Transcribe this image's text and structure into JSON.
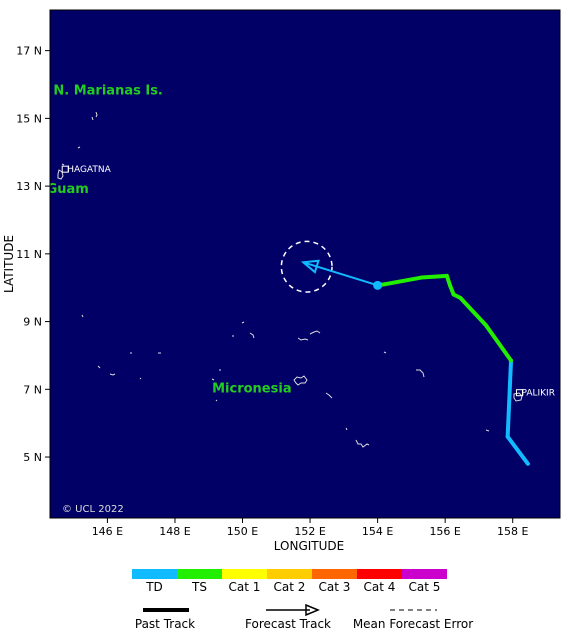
{
  "map": {
    "background": "#000066",
    "land_color": "#dddddd",
    "x_axis_title": "LONGITUDE",
    "y_axis_title": "LATITUDE",
    "lon_range": [
      144.3,
      159.4
    ],
    "lat_range": [
      3.2,
      18.2
    ],
    "lon_ticks": [
      "146 E",
      "148 E",
      "150 E",
      "152 E",
      "154 E",
      "156 E",
      "158 E"
    ],
    "lat_ticks": [
      "5 N",
      "7 N",
      "9 N",
      "11 N",
      "13 N",
      "15 N",
      "17 N"
    ],
    "copyright": "© UCL 2022"
  },
  "places": [
    {
      "label": "N. Marianas Is.",
      "lon": 144.4,
      "lat": 15.7
    },
    {
      "label": "Micronesia",
      "lon": 149.1,
      "lat": 6.9
    },
    {
      "label": "Guam",
      "lon": 144.2,
      "lat": 12.8
    }
  ],
  "cities": [
    {
      "label": "HAGATNA",
      "lon": 144.75,
      "lat": 13.5
    },
    {
      "label": "PALIKIR",
      "lon": 158.2,
      "lat": 6.9
    }
  ],
  "track": {
    "past": [
      {
        "lon": 158.45,
        "lat": 4.8,
        "cat": "TD"
      },
      {
        "lon": 157.85,
        "lat": 5.6,
        "cat": "TD"
      },
      {
        "lon": 157.95,
        "lat": 7.85,
        "cat": "TD"
      },
      {
        "lon": 157.2,
        "lat": 8.9,
        "cat": "TS"
      },
      {
        "lon": 156.45,
        "lat": 9.7,
        "cat": "TS"
      },
      {
        "lon": 156.25,
        "lat": 9.8,
        "cat": "TS"
      },
      {
        "lon": 156.15,
        "lat": 10.05,
        "cat": "TS"
      },
      {
        "lon": 156.05,
        "lat": 10.35,
        "cat": "TS"
      },
      {
        "lon": 155.3,
        "lat": 10.3,
        "cat": "TS"
      },
      {
        "lon": 154.2,
        "lat": 10.1,
        "cat": "TS"
      },
      {
        "lon": 154.0,
        "lat": 10.07,
        "cat": "TS"
      }
    ],
    "current_position": {
      "lon": 154.0,
      "lat": 10.07
    },
    "forecast": [
      {
        "lon": 154.0,
        "lat": 10.07
      },
      {
        "lon": 151.8,
        "lat": 10.75
      }
    ],
    "forecast_error": {
      "lon": 151.9,
      "lat": 10.62,
      "radius_deg": 0.75
    }
  },
  "legend": {
    "categories": [
      {
        "label": "TD",
        "color": "#11bbff"
      },
      {
        "label": "TS",
        "color": "#22ee00"
      },
      {
        "label": "Cat 1",
        "color": "#ffff00"
      },
      {
        "label": "Cat 2",
        "color": "#ffcc00"
      },
      {
        "label": "Cat 3",
        "color": "#ff6600"
      },
      {
        "label": "Cat 4",
        "color": "#ff0000"
      },
      {
        "label": "Cat 5",
        "color": "#cc00cc"
      }
    ],
    "past_track_label": "Past Track",
    "forecast_track_label": "Forecast Track",
    "error_label": "Mean Forecast Error"
  }
}
